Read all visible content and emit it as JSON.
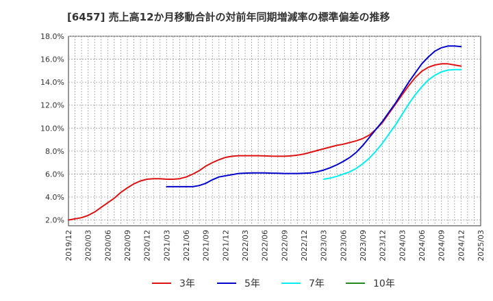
{
  "title": "[6457]  売上高12か月移動合計の対前年同期増減率の標準偏差の推移",
  "chart_data": {
    "type": "line",
    "title": "[6457]  売上高12か月移動合計の対前年同期増減率の標準偏差の推移",
    "xlabel": "",
    "ylabel": "",
    "x_tick_labels": [
      "2019/12",
      "2020/03",
      "2020/06",
      "2020/09",
      "2020/12",
      "2021/03",
      "2021/06",
      "2021/09",
      "2021/12",
      "2022/03",
      "2022/06",
      "2022/09",
      "2022/12",
      "2023/03",
      "2023/06",
      "2023/09",
      "2023/12",
      "2024/03",
      "2024/06",
      "2024/09",
      "2024/12",
      "2025/03"
    ],
    "y_tick_labels": [
      "2.0%",
      "4.0%",
      "6.0%",
      "8.0%",
      "10.0%",
      "12.0%",
      "14.0%",
      "16.0%",
      "18.0%"
    ],
    "ylim": [
      1.5,
      18.0
    ],
    "y_unit": "%",
    "grid": true,
    "legend_position": "bottom",
    "months": [
      "2019/12",
      "2020/01",
      "2020/02",
      "2020/03",
      "2020/04",
      "2020/05",
      "2020/06",
      "2020/07",
      "2020/08",
      "2020/09",
      "2020/10",
      "2020/11",
      "2020/12",
      "2021/01",
      "2021/02",
      "2021/03",
      "2021/04",
      "2021/05",
      "2021/06",
      "2021/07",
      "2021/08",
      "2021/09",
      "2021/10",
      "2021/11",
      "2021/12",
      "2022/01",
      "2022/02",
      "2022/03",
      "2022/04",
      "2022/05",
      "2022/06",
      "2022/07",
      "2022/08",
      "2022/09",
      "2022/10",
      "2022/11",
      "2022/12",
      "2023/01",
      "2023/02",
      "2023/03",
      "2023/04",
      "2023/05",
      "2023/06",
      "2023/07",
      "2023/08",
      "2023/09",
      "2023/10",
      "2023/11",
      "2023/12",
      "2024/01",
      "2024/02",
      "2024/03",
      "2024/04",
      "2024/05",
      "2024/06",
      "2024/07",
      "2024/08",
      "2024/09",
      "2024/10",
      "2024/11",
      "2024/12"
    ],
    "series": [
      {
        "name": "3年",
        "color": "#dd1111",
        "values": [
          2.0,
          2.1,
          2.2,
          2.4,
          2.7,
          3.1,
          3.5,
          3.9,
          4.4,
          4.8,
          5.15,
          5.4,
          5.55,
          5.6,
          5.6,
          5.55,
          5.55,
          5.6,
          5.75,
          6.0,
          6.3,
          6.7,
          7.0,
          7.25,
          7.45,
          7.55,
          7.6,
          7.6,
          7.6,
          7.6,
          7.58,
          7.56,
          7.55,
          7.55,
          7.58,
          7.65,
          7.75,
          7.9,
          8.05,
          8.2,
          8.35,
          8.5,
          8.6,
          8.75,
          8.9,
          9.1,
          9.4,
          9.9,
          10.5,
          11.3,
          12.1,
          12.9,
          13.7,
          14.4,
          14.95,
          15.3,
          15.5,
          15.6,
          15.6,
          15.5,
          15.4
        ]
      },
      {
        "name": "5年",
        "color": "#0000cc",
        "values": [
          null,
          null,
          null,
          null,
          null,
          null,
          null,
          null,
          null,
          null,
          null,
          null,
          null,
          null,
          null,
          4.9,
          4.9,
          4.9,
          4.9,
          4.9,
          5.0,
          5.2,
          5.5,
          5.75,
          5.85,
          5.95,
          6.05,
          6.08,
          6.1,
          6.1,
          6.1,
          6.08,
          6.07,
          6.05,
          6.05,
          6.05,
          6.07,
          6.1,
          6.2,
          6.35,
          6.55,
          6.8,
          7.1,
          7.45,
          7.9,
          8.5,
          9.2,
          9.9,
          10.6,
          11.4,
          12.2,
          13.1,
          14.0,
          14.8,
          15.6,
          16.2,
          16.7,
          17.0,
          17.15,
          17.15,
          17.1
        ]
      },
      {
        "name": "7年",
        "color": "#00eeee",
        "values": [
          null,
          null,
          null,
          null,
          null,
          null,
          null,
          null,
          null,
          null,
          null,
          null,
          null,
          null,
          null,
          null,
          null,
          null,
          null,
          null,
          null,
          null,
          null,
          null,
          null,
          null,
          null,
          null,
          null,
          null,
          null,
          null,
          null,
          null,
          null,
          null,
          null,
          null,
          null,
          5.55,
          5.65,
          5.8,
          6.0,
          6.2,
          6.5,
          6.9,
          7.4,
          8.0,
          8.7,
          9.5,
          10.3,
          11.2,
          12.1,
          12.9,
          13.6,
          14.2,
          14.6,
          14.9,
          15.05,
          15.1,
          15.1
        ]
      },
      {
        "name": "10年",
        "color": "#228822",
        "values": []
      }
    ]
  }
}
